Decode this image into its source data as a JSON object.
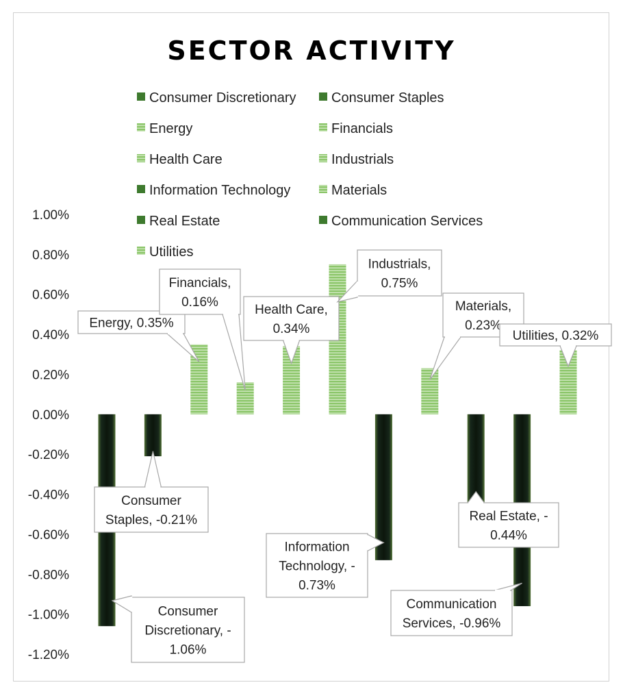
{
  "chart_data": {
    "type": "bar",
    "title": "SECTOR ACTIVITY",
    "xlabel": "",
    "ylabel": "",
    "ylim": [
      -1.2,
      1.0
    ],
    "ytick_step": 0.2,
    "y_tick_labels": [
      "1.00%",
      "0.80%",
      "0.60%",
      "0.40%",
      "0.20%",
      "0.00%",
      "-0.20%",
      "-0.40%",
      "-0.60%",
      "-0.80%",
      "-1.00%",
      "-1.20%"
    ],
    "grid": false,
    "legend_position": "top",
    "categories": [
      "Consumer Discretionary",
      "Consumer Staples",
      "Energy",
      "Financials",
      "Health Care",
      "Industrials",
      "Information Technology",
      "Materials",
      "Real Estate",
      "Communication Services",
      "Utilities"
    ],
    "values": [
      -1.06,
      -0.21,
      0.35,
      0.16,
      0.34,
      0.75,
      -0.73,
      0.23,
      -0.44,
      -0.96,
      0.32
    ],
    "data_labels": [
      [
        "Consumer",
        "Discretionary, -",
        "1.06%"
      ],
      [
        "Consumer",
        "Staples, -0.21%"
      ],
      [
        "Energy, 0.35%"
      ],
      [
        "Financials,",
        "0.16%"
      ],
      [
        "Health Care,",
        "0.34%"
      ],
      [
        "Industrials,",
        "0.75%"
      ],
      [
        "Information",
        "Technology, -",
        "0.73%"
      ],
      [
        "Materials,",
        "0.23%"
      ],
      [
        "Real Estate, -",
        "0.44%"
      ],
      [
        "Communication",
        "Services, -0.96%"
      ],
      [
        "Utilities, 0.32%"
      ]
    ],
    "colors": {
      "negative_fill": "#142814",
      "negative_glow": "#5a7a3a",
      "positive_fill": "#8cc66a",
      "positive_stripe": "#e6f3dc",
      "legend_solid": "#3e7a2e",
      "legend_striped": "#7fbf5f"
    }
  }
}
